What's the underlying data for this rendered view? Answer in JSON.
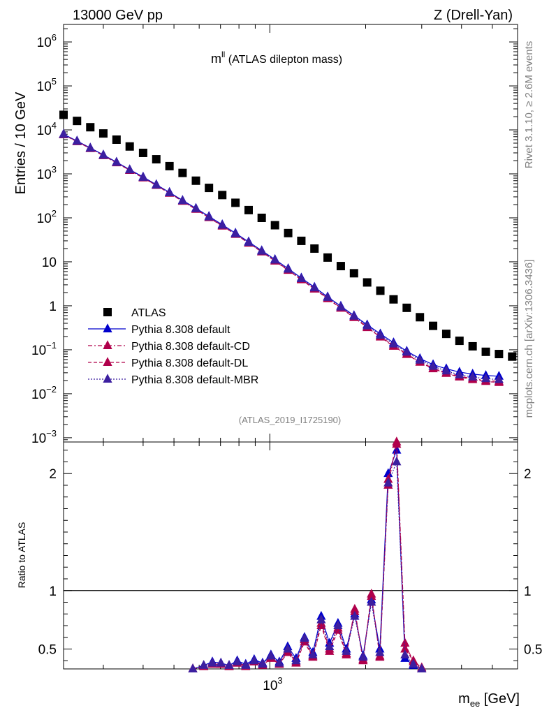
{
  "header": {
    "left": "13000 GeV pp",
    "right": "Z (Drell-Yan)"
  },
  "side": {
    "rivet_prefix": "Rivet 3.1.10, ",
    "rivet_ge": "≥",
    "rivet_suffix": " 2.6M events",
    "mcplots": "mcplots.cern.ch [arXiv:1306.3436]"
  },
  "chart_data": [
    {
      "type": "scatter",
      "title_main": "m",
      "title_sup": "ll",
      "title_rest": " (ATLAS dilepton mass)",
      "ylabel": "Entries / 10 GeV",
      "analysis_id": "(ATLAS_2019_I1725190)",
      "yscale": "log",
      "xscale": "log",
      "xlim": [
        225,
        6000
      ],
      "ylim": [
        0.0008,
        2500000
      ],
      "y_ticks_major": [
        {
          "base": "10",
          "exp": "−3",
          "value": 0.001
        },
        {
          "base": "10",
          "exp": "−2",
          "value": 0.01
        },
        {
          "base": "10",
          "exp": "−1",
          "value": 0.1
        },
        {
          "base": "1",
          "exp": "",
          "value": 1
        },
        {
          "base": "10",
          "exp": "",
          "value": 10
        },
        {
          "base": "10",
          "exp": "2",
          "value": 100
        },
        {
          "base": "10",
          "exp": "3",
          "value": 1000
        },
        {
          "base": "10",
          "exp": "4",
          "value": 10000
        },
        {
          "base": "10",
          "exp": "5",
          "value": 100000
        },
        {
          "base": "10",
          "exp": "6",
          "value": 1000000
        }
      ],
      "legend": [
        {
          "label": "ATLAS",
          "color": "#000000",
          "marker": "square",
          "line": "none"
        },
        {
          "label": "Pythia 8.308 default",
          "color": "#0000cc",
          "marker": "triangle",
          "line": "solid"
        },
        {
          "label": "Pythia 8.308 default-CD",
          "color": "#b0004b",
          "marker": "triangle",
          "line": "dashdot"
        },
        {
          "label": "Pythia 8.308 default-DL",
          "color": "#b0004b",
          "marker": "triangle",
          "line": "dashed"
        },
        {
          "label": "Pythia 8.308 default-MBR",
          "color": "#3c1fa0",
          "marker": "triangle",
          "line": "dotted"
        }
      ],
      "series": [
        {
          "name": "ATLAS",
          "x": [
            225,
            248,
            273,
            300,
            330,
            363,
            400,
            440,
            484,
            532,
            586,
            644,
            709,
            780,
            858,
            943,
            1038,
            1142,
            1256,
            1381,
            1519,
            1671,
            1838,
            2022,
            2224,
            2447,
            2692,
            2961,
            3257,
            3583,
            3941,
            4335,
            4769,
            5245,
            5770
          ],
          "y": [
            22000,
            16000,
            11500,
            8300,
            6000,
            4200,
            3000,
            2150,
            1500,
            1050,
            700,
            480,
            330,
            220,
            150,
            100,
            68,
            45,
            30,
            20,
            12.5,
            8,
            5.5,
            3.4,
            2.2,
            1.4,
            0.9,
            0.55,
            0.35,
            0.23,
            0.16,
            0.12,
            0.09,
            0.08,
            0.07
          ]
        },
        {
          "name": "Pythia 8.308 default",
          "x": [
            225,
            248,
            273,
            300,
            330,
            363,
            400,
            440,
            484,
            532,
            586,
            644,
            709,
            780,
            858,
            943,
            1038,
            1142,
            1256,
            1381,
            1519,
            1671,
            1838,
            2022,
            2224,
            2447,
            2692,
            2961,
            3257,
            3583,
            3941,
            4335,
            4769,
            5245
          ],
          "y": [
            8000,
            5600,
            3900,
            2700,
            1850,
            1250,
            850,
            570,
            380,
            250,
            165,
            108,
            70,
            45,
            28.5,
            18,
            11.3,
            7,
            4.3,
            2.65,
            1.6,
            0.98,
            0.6,
            0.37,
            0.23,
            0.145,
            0.093,
            0.063,
            0.046,
            0.037,
            0.031,
            0.028,
            0.026,
            0.025
          ]
        },
        {
          "name": "Pythia 8.308 default-CD",
          "x": [
            225,
            248,
            273,
            300,
            330,
            363,
            400,
            440,
            484,
            532,
            586,
            644,
            709,
            780,
            858,
            943,
            1038,
            1142,
            1256,
            1381,
            1519,
            1671,
            1838,
            2022,
            2224,
            2447,
            2692,
            2961,
            3257,
            3583,
            3941,
            4335,
            4769,
            5245
          ],
          "y": [
            7800,
            5450,
            3800,
            2620,
            1800,
            1210,
            820,
            550,
            365,
            240,
            158,
            103,
            66,
            42.5,
            27,
            17,
            10.6,
            6.5,
            4,
            2.45,
            1.48,
            0.9,
            0.55,
            0.33,
            0.2,
            0.125,
            0.08,
            0.053,
            0.038,
            0.03,
            0.025,
            0.022,
            0.02,
            0.019
          ]
        },
        {
          "name": "Pythia 8.308 default-DL",
          "x": [
            225,
            248,
            273,
            300,
            330,
            363,
            400,
            440,
            484,
            532,
            586,
            644,
            709,
            780,
            858,
            943,
            1038,
            1142,
            1256,
            1381,
            1519,
            1671,
            1838,
            2022,
            2224,
            2447,
            2692,
            2961,
            3257,
            3583,
            3941,
            4335,
            4769,
            5245
          ],
          "y": [
            7750,
            5400,
            3760,
            2600,
            1780,
            1200,
            810,
            545,
            362,
            238,
            156,
            101,
            65,
            42,
            26.5,
            16.8,
            10.4,
            6.4,
            3.9,
            2.4,
            1.45,
            0.88,
            0.54,
            0.32,
            0.195,
            0.12,
            0.078,
            0.052,
            0.037,
            0.029,
            0.024,
            0.021,
            0.019,
            0.018
          ]
        },
        {
          "name": "Pythia 8.308 default-MBR",
          "x": [
            225,
            248,
            273,
            300,
            330,
            363,
            400,
            440,
            484,
            532,
            586,
            644,
            709,
            780,
            858,
            943,
            1038,
            1142,
            1256,
            1381,
            1519,
            1671,
            1838,
            2022,
            2224,
            2447,
            2692,
            2961,
            3257,
            3583,
            3941,
            4335,
            4769,
            5245
          ],
          "y": [
            7900,
            5520,
            3850,
            2660,
            1825,
            1230,
            835,
            560,
            372,
            245,
            161,
            105,
            68,
            43.5,
            27.7,
            17.5,
            11,
            6.8,
            4.15,
            2.55,
            1.55,
            0.94,
            0.58,
            0.35,
            0.215,
            0.135,
            0.088,
            0.058,
            0.042,
            0.033,
            0.027,
            0.024,
            0.022,
            0.021
          ]
        }
      ]
    },
    {
      "type": "line",
      "ylabel": "Ratio to ATLAS",
      "xlabel_main": "m",
      "xlabel_sub": "ee",
      "xlabel_rest": " [GeV]",
      "xscale": "log",
      "xlim": [
        225,
        6000
      ],
      "ylim": [
        0.33,
        2.27
      ],
      "x_tick_label": {
        "base": "10",
        "exp": "3",
        "value": 1000
      },
      "y_ticks": [
        {
          "label": "0.5",
          "value": 0.5
        },
        {
          "label": "1",
          "value": 1
        },
        {
          "label": "2",
          "value": 2
        }
      ],
      "reference_line": 1,
      "series": [
        {
          "name": "Pythia 8.308 default",
          "x": [
            573,
            620,
            660,
            702,
            745,
            790,
            840,
            893,
            949,
            1008,
            1071,
            1138,
            1209,
            1285,
            1365,
            1450,
            1540,
            1637,
            1739,
            1848,
            1963,
            2085,
            2216,
            2354,
            2502,
            2658,
            2824,
            3000
          ],
          "y": [
            0.33,
            0.36,
            0.39,
            0.38,
            0.36,
            0.4,
            0.37,
            0.41,
            0.38,
            0.45,
            0.39,
            0.52,
            0.42,
            0.6,
            0.47,
            0.78,
            0.55,
            0.72,
            0.5,
            0.8,
            0.44,
            0.92,
            0.5,
            2.0,
            2.2,
            0.42,
            0.36,
            0.33
          ]
        },
        {
          "name": "Pythia 8.308 default-CD",
          "x": [
            573,
            620,
            660,
            702,
            745,
            790,
            840,
            893,
            949,
            1008,
            1071,
            1138,
            1209,
            1285,
            1365,
            1450,
            1540,
            1637,
            1739,
            1848,
            1963,
            2085,
            2216,
            2354,
            2502,
            2658,
            2824,
            3000
          ],
          "y": [
            0.33,
            0.35,
            0.38,
            0.37,
            0.35,
            0.38,
            0.36,
            0.39,
            0.37,
            0.43,
            0.37,
            0.48,
            0.39,
            0.58,
            0.44,
            0.72,
            0.5,
            0.68,
            0.46,
            0.82,
            0.41,
            0.95,
            0.44,
            1.9,
            2.3,
            0.55,
            0.39,
            0.33
          ]
        },
        {
          "name": "Pythia 8.308 default-DL",
          "x": [
            573,
            620,
            660,
            702,
            745,
            790,
            840,
            893,
            949,
            1008,
            1071,
            1138,
            1209,
            1285,
            1365,
            1450,
            1540,
            1637,
            1739,
            1848,
            1963,
            2085,
            2216,
            2354,
            2502,
            2658,
            2824,
            3000
          ],
          "y": [
            0.33,
            0.35,
            0.37,
            0.37,
            0.35,
            0.38,
            0.35,
            0.39,
            0.36,
            0.42,
            0.37,
            0.47,
            0.38,
            0.56,
            0.43,
            0.7,
            0.48,
            0.66,
            0.45,
            0.84,
            0.4,
            0.97,
            0.43,
            1.95,
            2.25,
            0.5,
            0.4,
            0.34
          ]
        },
        {
          "name": "Pythia 8.308 default-MBR",
          "x": [
            573,
            620,
            660,
            702,
            745,
            790,
            840,
            893,
            949,
            1008,
            1071,
            1138,
            1209,
            1285,
            1365,
            1450,
            1540,
            1637,
            1739,
            1848,
            1963,
            2085,
            2216,
            2354,
            2502,
            2658,
            2824,
            3000
          ],
          "y": [
            0.33,
            0.36,
            0.38,
            0.38,
            0.36,
            0.39,
            0.36,
            0.4,
            0.37,
            0.44,
            0.38,
            0.5,
            0.4,
            0.59,
            0.45,
            0.75,
            0.52,
            0.7,
            0.48,
            0.78,
            0.43,
            0.9,
            0.47,
            1.92,
            2.1,
            0.45,
            0.37,
            0.33
          ]
        }
      ]
    }
  ]
}
